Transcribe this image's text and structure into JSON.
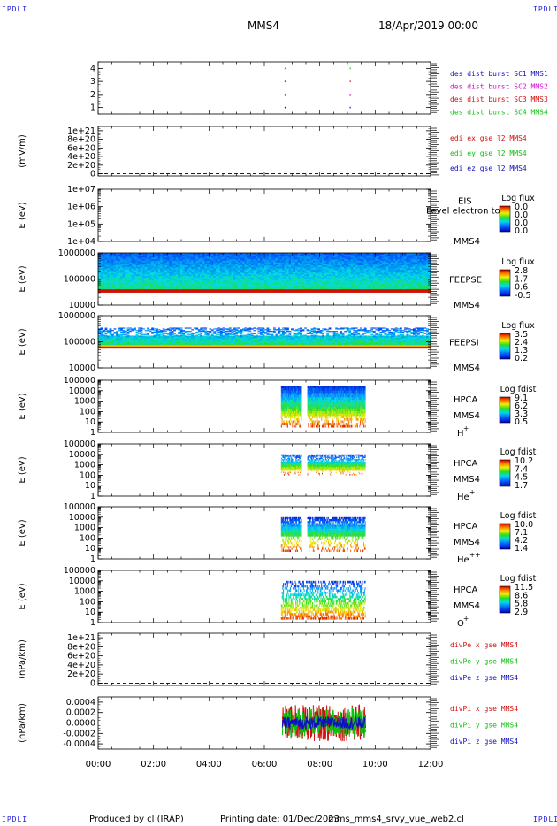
{
  "header": {
    "corner_label": "IPDLI",
    "spacecraft": "MMS4",
    "date": "18/Apr/2019 00:00"
  },
  "footer": {
    "produced_by": "Produced by cl (IRAP)",
    "printing_date": "Printing date: 01/Dec/2023",
    "file_name": "mms_mms4_srvy_vue_web2.cl"
  },
  "colors": {
    "red": "#d01010",
    "green": "#10c010",
    "blue": "#1010c0",
    "magenta": "#d010d0"
  },
  "time_axis": {
    "range_hours": [
      0,
      12
    ],
    "tick_labels": [
      "00:00",
      "02:00",
      "04:00",
      "06:00",
      "08:00",
      "10:00",
      "12:00"
    ]
  },
  "chart_data": [
    {
      "id": "burst",
      "type": "scatter",
      "ylim": [
        0.5,
        4.5
      ],
      "ticks": [
        {
          "v": 1,
          "t": "1"
        },
        {
          "v": 2,
          "t": "2"
        },
        {
          "v": 3,
          "t": "3"
        },
        {
          "v": 4,
          "t": "4"
        }
      ],
      "ylabel": "",
      "legend": [
        {
          "text": "des dist burst SC1 MMS1",
          "color": "#1010c0"
        },
        {
          "text": "des dist burst SC2 MMS2",
          "color": "#d010d0"
        },
        {
          "text": "des dist burst SC3 MMS3",
          "color": "#d01010"
        },
        {
          "text": "des dist burst SC4 MMS4",
          "color": "#10c010"
        }
      ],
      "marks": [
        {
          "x": 6.75,
          "y": 1,
          "color": "#1010c0"
        },
        {
          "x": 9.1,
          "y": 1,
          "color": "#1010c0"
        },
        {
          "x": 6.75,
          "y": 2,
          "color": "#d010d0"
        },
        {
          "x": 9.1,
          "y": 2,
          "color": "#d010d0"
        },
        {
          "x": 6.75,
          "y": 3,
          "color": "#d01010"
        },
        {
          "x": 9.1,
          "y": 3,
          "color": "#d01010"
        },
        {
          "x": 6.75,
          "y": 4,
          "color": "#10c010"
        },
        {
          "x": 9.1,
          "y": 4,
          "color": "#10c010"
        }
      ]
    },
    {
      "id": "edi",
      "type": "line",
      "ylim": [
        -5e+19,
        1.1e+21
      ],
      "ticks": [
        {
          "v": 0,
          "t": "0"
        },
        {
          "v": 2e+20,
          "t": "2e+20"
        },
        {
          "v": 4e+20,
          "t": "4e+20"
        },
        {
          "v": 6e+20,
          "t": "6e+20"
        },
        {
          "v": 8e+20,
          "t": "8e+20"
        },
        {
          "v": 1e+21,
          "t": "1e+21"
        }
      ],
      "ylabel": "(mV/m)",
      "zero_line": true,
      "legend": [
        {
          "text": "edi ex gse l2 MMS4",
          "color": "#d01010"
        },
        {
          "text": "edi ey gse l2 MMS4",
          "color": "#10c010"
        },
        {
          "text": "edi ez gse l2 MMS4",
          "color": "#1010c0"
        }
      ]
    },
    {
      "id": "eis",
      "type": "heatmap",
      "log": true,
      "ylim": [
        10000.0,
        10000000.0
      ],
      "ticks": [
        {
          "v": 10000.0,
          "t": "1e+04"
        },
        {
          "v": 100000.0,
          "t": "1e+05"
        },
        {
          "v": 1000000.0,
          "t": "1e+06"
        },
        {
          "v": 10000000.0,
          "t": "1e+07"
        }
      ],
      "ylabel": "E (eV)",
      "instrument": "EIS",
      "species": "MMS4",
      "overlay_text": "Level electron to",
      "colorbar": {
        "title": "Log flux",
        "labels": [
          "0.0",
          "0.0",
          "0.0",
          "0.0"
        ]
      }
    },
    {
      "id": "feepse",
      "type": "heatmap",
      "log": true,
      "ylim": [
        10000.0,
        1000000.0
      ],
      "ticks": [
        {
          "v": 10000.0,
          "t": "10000"
        },
        {
          "v": 100000.0,
          "t": "100000"
        },
        {
          "v": 1000000.0,
          "t": "1000000"
        }
      ],
      "ylabel": "E (eV)",
      "instrument": "FEEPSE",
      "species": "MMS4",
      "colorbar": {
        "title": "Log flux",
        "labels": [
          "2.8",
          "1.7",
          "0.6",
          "-0.5"
        ]
      },
      "spectrum": {
        "t_range": [
          0,
          12
        ],
        "e_low": [
          30000,
          40000
        ],
        "e_body": [
          40000,
          1000000
        ]
      }
    },
    {
      "id": "feepsi",
      "type": "heatmap",
      "log": true,
      "ylim": [
        10000.0,
        1000000.0
      ],
      "ticks": [
        {
          "v": 10000.0,
          "t": "10000"
        },
        {
          "v": 100000.0,
          "t": "100000"
        },
        {
          "v": 1000000.0,
          "t": "1000000"
        }
      ],
      "ylabel": "E (eV)",
      "instrument": "FEEPSI",
      "species": "MMS4",
      "colorbar": {
        "title": "Log flux",
        "labels": [
          "3.5",
          "2.4",
          "1.3",
          "0.2"
        ]
      },
      "spectrum": {
        "t_range": [
          0,
          12
        ],
        "e_low": [
          55000,
          65000
        ],
        "e_body": [
          65000,
          350000
        ]
      }
    },
    {
      "id": "hpca_h",
      "type": "heatmap",
      "log": true,
      "ylim": [
        1,
        100000.0
      ],
      "ticks": [
        {
          "v": 1,
          "t": "1"
        },
        {
          "v": 10,
          "t": "10"
        },
        {
          "v": 100,
          "t": "100"
        },
        {
          "v": 1000,
          "t": "1000"
        },
        {
          "v": 10000.0,
          "t": "10000"
        },
        {
          "v": 100000.0,
          "t": "100000"
        }
      ],
      "ylabel": "E (eV)",
      "instrument": "HPCA",
      "species": "MMS4",
      "ion": "H",
      "charge": "+",
      "colorbar": {
        "title": "Log fdist",
        "labels": [
          "9.1",
          "6.2",
          "3.3",
          "0.5"
        ]
      },
      "spectrum": {
        "t_intervals": [
          [
            6.6,
            7.35
          ],
          [
            7.55,
            9.65
          ]
        ],
        "e_top": 30000,
        "e_bottom": 3
      }
    },
    {
      "id": "hpca_he",
      "type": "heatmap",
      "log": true,
      "ylim": [
        1,
        100000.0
      ],
      "ticks": [
        {
          "v": 1,
          "t": "1"
        },
        {
          "v": 10,
          "t": "10"
        },
        {
          "v": 100,
          "t": "100"
        },
        {
          "v": 1000,
          "t": "1000"
        },
        {
          "v": 10000.0,
          "t": "10000"
        },
        {
          "v": 100000.0,
          "t": "100000"
        }
      ],
      "ylabel": "E (eV)",
      "instrument": "HPCA",
      "species": "MMS4",
      "ion": "He",
      "charge": "+",
      "colorbar": {
        "title": "Log fdist",
        "labels": [
          "10.2",
          "7.4",
          "4.5",
          "1.7"
        ]
      },
      "spectrum": {
        "t_intervals": [
          [
            6.6,
            7.35
          ],
          [
            7.55,
            9.65
          ]
        ],
        "e_top": 10000,
        "e_bottom": 100
      }
    },
    {
      "id": "hpca_he2",
      "type": "heatmap",
      "log": true,
      "ylim": [
        1,
        100000.0
      ],
      "ticks": [
        {
          "v": 1,
          "t": "1"
        },
        {
          "v": 10,
          "t": "10"
        },
        {
          "v": 100,
          "t": "100"
        },
        {
          "v": 1000,
          "t": "1000"
        },
        {
          "v": 10000.0,
          "t": "10000"
        },
        {
          "v": 100000.0,
          "t": "100000"
        }
      ],
      "ylabel": "E (eV)",
      "instrument": "HPCA",
      "species": "MMS4",
      "ion": "He",
      "charge": "++",
      "colorbar": {
        "title": "Log fdist",
        "labels": [
          "10.0",
          "7.1",
          "4.2",
          "1.4"
        ]
      },
      "spectrum": {
        "t_intervals": [
          [
            6.6,
            7.35
          ],
          [
            7.55,
            9.65
          ]
        ],
        "e_top": 10000,
        "e_bottom": 5
      }
    },
    {
      "id": "hpca_o",
      "type": "heatmap",
      "log": true,
      "ylim": [
        1,
        100000.0
      ],
      "ticks": [
        {
          "v": 1,
          "t": "1"
        },
        {
          "v": 10,
          "t": "10"
        },
        {
          "v": 100,
          "t": "100"
        },
        {
          "v": 1000,
          "t": "1000"
        },
        {
          "v": 10000.0,
          "t": "10000"
        },
        {
          "v": 100000.0,
          "t": "100000"
        }
      ],
      "ylabel": "E (eV)",
      "instrument": "HPCA",
      "species": "MMS4",
      "ion": "O",
      "charge": "+",
      "colorbar": {
        "title": "Log fdist",
        "labels": [
          "11.5",
          "8.6",
          "5.8",
          "2.9"
        ]
      },
      "spectrum": {
        "t_intervals": [
          [
            6.6,
            9.65
          ]
        ],
        "e_top": 10000,
        "e_bottom": 2
      }
    },
    {
      "id": "divpe",
      "type": "line",
      "ylim": [
        -5e+19,
        1.1e+21
      ],
      "ticks": [
        {
          "v": 0,
          "t": "0"
        },
        {
          "v": 2e+20,
          "t": "2e+20"
        },
        {
          "v": 4e+20,
          "t": "4e+20"
        },
        {
          "v": 6e+20,
          "t": "6e+20"
        },
        {
          "v": 8e+20,
          "t": "8e+20"
        },
        {
          "v": 1e+21,
          "t": "1e+21"
        }
      ],
      "ylabel": "(nPa/km)",
      "zero_line": true,
      "legend": [
        {
          "text": "divPe x gse MMS4",
          "color": "#d01010"
        },
        {
          "text": "divPe y gse MMS4",
          "color": "#10c010"
        },
        {
          "text": "divPe z gse MMS4",
          "color": "#1010c0"
        }
      ]
    },
    {
      "id": "divpi",
      "type": "line",
      "ylim": [
        -0.0005,
        0.0005
      ],
      "ticks": [
        {
          "v": -0.0004,
          "t": "-0.0004"
        },
        {
          "v": -0.0002,
          "t": "-0.0002"
        },
        {
          "v": 0,
          "t": "0.0000"
        },
        {
          "v": 0.0002,
          "t": "0.0002"
        },
        {
          "v": 0.0004,
          "t": "0.0004"
        }
      ],
      "ylabel": "(nPa/km)",
      "zero_line": true,
      "legend": [
        {
          "text": "divPi x gse MMS4",
          "color": "#d01010"
        },
        {
          "text": "divPi y gse MMS4",
          "color": "#10c010"
        },
        {
          "text": "divPi z gse MMS4",
          "color": "#1010c0"
        }
      ],
      "series_range": {
        "t": [
          6.65,
          9.65
        ],
        "amplitude": [
          0.00035,
          0.00028,
          0.00012
        ]
      }
    }
  ]
}
